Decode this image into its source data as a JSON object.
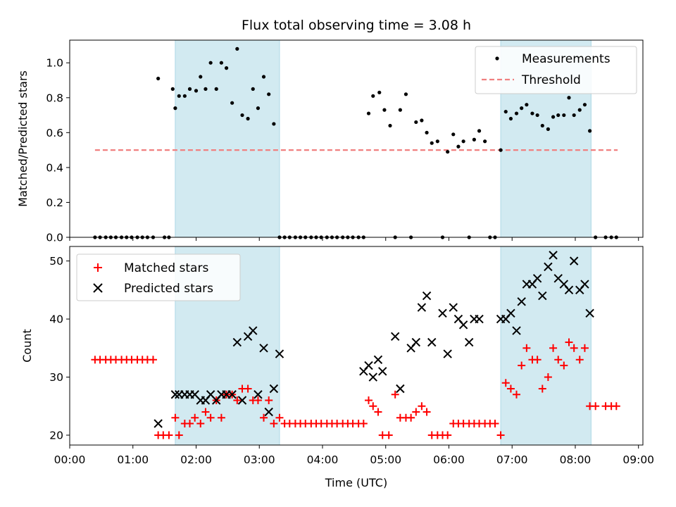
{
  "chart_data": {
    "type": "scatter",
    "title": "Flux total observing time = 3.08 h",
    "xlabel": "Time (UTC)",
    "x_ticks": [
      "00:00",
      "01:00",
      "02:00",
      "03:00",
      "04:00",
      "05:00",
      "06:00",
      "07:00",
      "08:00",
      "09:00"
    ],
    "x_range_hours": [
      0.0,
      9.07
    ],
    "highlight_bands_hours": [
      [
        1.67,
        3.32
      ],
      [
        6.82,
        8.25
      ]
    ],
    "colors": {
      "band": "#add8e6",
      "threshold": "#f08080",
      "matched": "#ff0000",
      "predicted": "#000000",
      "measurement": "#000000"
    },
    "top_panel": {
      "ylabel": "Matched/Predicted stars",
      "ylim": [
        0,
        1.13
      ],
      "y_ticks": [
        "0.0",
        "0.2",
        "0.4",
        "0.6",
        "0.8",
        "1.0"
      ],
      "y_tick_values": [
        0,
        0.2,
        0.4,
        0.6,
        0.8,
        1.0
      ],
      "legend": {
        "position": "upper right",
        "entries": [
          "Measurements",
          "Threshold"
        ]
      },
      "threshold": {
        "name": "Threshold",
        "value": 0.5,
        "x_range_hours": [
          0.4,
          8.67
        ]
      },
      "measurements": {
        "name": "Measurements",
        "x_hours": [
          0.4,
          0.48,
          0.57,
          0.65,
          0.73,
          0.82,
          0.9,
          0.98,
          1.07,
          1.15,
          1.23,
          1.32,
          1.4,
          1.5,
          1.57,
          1.63,
          1.67,
          1.73,
          1.82,
          1.9,
          2.0,
          2.07,
          2.15,
          2.23,
          2.32,
          2.4,
          2.48,
          2.57,
          2.65,
          2.73,
          2.82,
          2.9,
          2.98,
          3.07,
          3.15,
          3.23,
          3.32,
          3.4,
          3.48,
          3.57,
          3.65,
          3.73,
          3.82,
          3.9,
          3.98,
          4.07,
          4.15,
          4.23,
          4.32,
          4.4,
          4.48,
          4.57,
          4.65,
          4.73,
          4.8,
          4.9,
          4.98,
          5.07,
          5.15,
          5.23,
          5.32,
          5.4,
          5.48,
          5.57,
          5.65,
          5.73,
          5.82,
          5.9,
          5.98,
          6.07,
          6.15,
          6.23,
          6.32,
          6.4,
          6.48,
          6.57,
          6.65,
          6.73,
          6.82,
          6.9,
          6.98,
          7.07,
          7.15,
          7.23,
          7.32,
          7.4,
          7.48,
          7.57,
          7.65,
          7.73,
          7.82,
          7.9,
          7.98,
          8.07,
          8.15,
          8.23,
          8.32,
          8.48,
          8.57,
          8.65
        ],
        "y": [
          0,
          0,
          0,
          0,
          0,
          0,
          0,
          0,
          0,
          0,
          0,
          0,
          0.91,
          0,
          0,
          0.85,
          0.74,
          0.81,
          0.81,
          0.85,
          0.84,
          0.92,
          0.85,
          1.0,
          0.85,
          1.0,
          0.97,
          0.77,
          1.08,
          0.7,
          0.68,
          0.85,
          0.74,
          0.92,
          0.82,
          0.65,
          0,
          0,
          0,
          0,
          0,
          0,
          0,
          0,
          0,
          0,
          0,
          0,
          0,
          0,
          0,
          0,
          0,
          0.71,
          0.81,
          0.83,
          0.73,
          0.64,
          0,
          0.73,
          0.82,
          0,
          0.66,
          0.67,
          0.6,
          0.54,
          0.55,
          0,
          0.49,
          0.59,
          0.52,
          0.55,
          0,
          0.56,
          0.61,
          0.55,
          0,
          0,
          0.5,
          0.72,
          0.68,
          0.71,
          0.74,
          0.76,
          0.71,
          0.7,
          0.64,
          0.62,
          0.69,
          0.7,
          0.7,
          0.8,
          0.7,
          0.73,
          0.76,
          0.61,
          0,
          0,
          0,
          0
        ]
      }
    },
    "bottom_panel": {
      "ylabel": "Count",
      "ylim": [
        18.3,
        52.5
      ],
      "y_ticks": [
        "20",
        "30",
        "40",
        "50"
      ],
      "y_tick_values": [
        20,
        30,
        40,
        50
      ],
      "legend": {
        "position": "upper left",
        "entries": [
          "Matched stars",
          "Predicted stars"
        ]
      },
      "matched": {
        "name": "Matched stars",
        "x_hours": [
          0.4,
          0.48,
          0.57,
          0.65,
          0.73,
          0.82,
          0.9,
          0.98,
          1.07,
          1.15,
          1.23,
          1.32,
          1.4,
          1.48,
          1.57,
          1.67,
          1.73,
          1.82,
          1.9,
          1.98,
          2.07,
          2.15,
          2.23,
          2.32,
          2.4,
          2.48,
          2.57,
          2.65,
          2.73,
          2.82,
          2.9,
          2.98,
          3.07,
          3.15,
          3.23,
          3.32,
          3.4,
          3.48,
          3.57,
          3.65,
          3.73,
          3.82,
          3.9,
          3.98,
          4.07,
          4.15,
          4.23,
          4.32,
          4.4,
          4.48,
          4.57,
          4.65,
          4.73,
          4.8,
          4.88,
          4.95,
          5.05,
          5.15,
          5.23,
          5.32,
          5.4,
          5.48,
          5.57,
          5.65,
          5.73,
          5.82,
          5.9,
          5.98,
          6.07,
          6.15,
          6.23,
          6.32,
          6.4,
          6.48,
          6.57,
          6.65,
          6.73,
          6.82,
          6.9,
          6.98,
          7.07,
          7.15,
          7.23,
          7.32,
          7.4,
          7.48,
          7.57,
          7.65,
          7.73,
          7.82,
          7.9,
          7.98,
          8.07,
          8.15,
          8.23,
          8.32,
          8.48,
          8.57,
          8.65
        ],
        "y": [
          33,
          33,
          33,
          33,
          33,
          33,
          33,
          33,
          33,
          33,
          33,
          33,
          20,
          20,
          20,
          23,
          20,
          22,
          22,
          23,
          22,
          24,
          23,
          26,
          23,
          27,
          27,
          26,
          28,
          28,
          26,
          26,
          23,
          26,
          22,
          23,
          22,
          22,
          22,
          22,
          22,
          22,
          22,
          22,
          22,
          22,
          22,
          22,
          22,
          22,
          22,
          22,
          26,
          25,
          24,
          20,
          20,
          27,
          23,
          23,
          23,
          24,
          25,
          24,
          20,
          20,
          20,
          20,
          22,
          22,
          22,
          22,
          22,
          22,
          22,
          22,
          22,
          20,
          29,
          28,
          27,
          32,
          35,
          33,
          33,
          28,
          30,
          35,
          33,
          32,
          36,
          35,
          33,
          35,
          25,
          25,
          25,
          25,
          25
        ]
      },
      "predicted": {
        "name": "Predicted stars",
        "x_hours": [
          1.4,
          1.67,
          1.73,
          1.82,
          1.9,
          1.98,
          2.07,
          2.15,
          2.23,
          2.32,
          2.4,
          2.48,
          2.57,
          2.65,
          2.73,
          2.82,
          2.9,
          2.98,
          3.07,
          3.15,
          3.23,
          3.32,
          4.65,
          4.73,
          4.8,
          4.88,
          4.95,
          5.15,
          5.23,
          5.4,
          5.48,
          5.57,
          5.65,
          5.73,
          5.9,
          5.98,
          6.07,
          6.15,
          6.23,
          6.32,
          6.4,
          6.48,
          6.82,
          6.9,
          6.98,
          7.07,
          7.15,
          7.23,
          7.32,
          7.4,
          7.48,
          7.57,
          7.65,
          7.73,
          7.82,
          7.9,
          7.98,
          8.07,
          8.15,
          8.23
        ],
        "y": [
          22,
          27,
          27,
          27,
          27,
          27,
          26,
          26,
          27,
          26,
          27,
          27,
          27,
          36,
          26,
          37,
          38,
          27,
          35,
          24,
          28,
          34,
          31,
          32,
          30,
          33,
          31,
          37,
          28,
          35,
          36,
          42,
          44,
          36,
          41,
          34,
          42,
          40,
          39,
          36,
          40,
          40,
          40,
          40,
          41,
          38,
          43,
          46,
          46,
          47,
          44,
          49,
          51,
          47,
          46,
          45,
          50,
          45,
          46,
          41
        ]
      }
    }
  }
}
